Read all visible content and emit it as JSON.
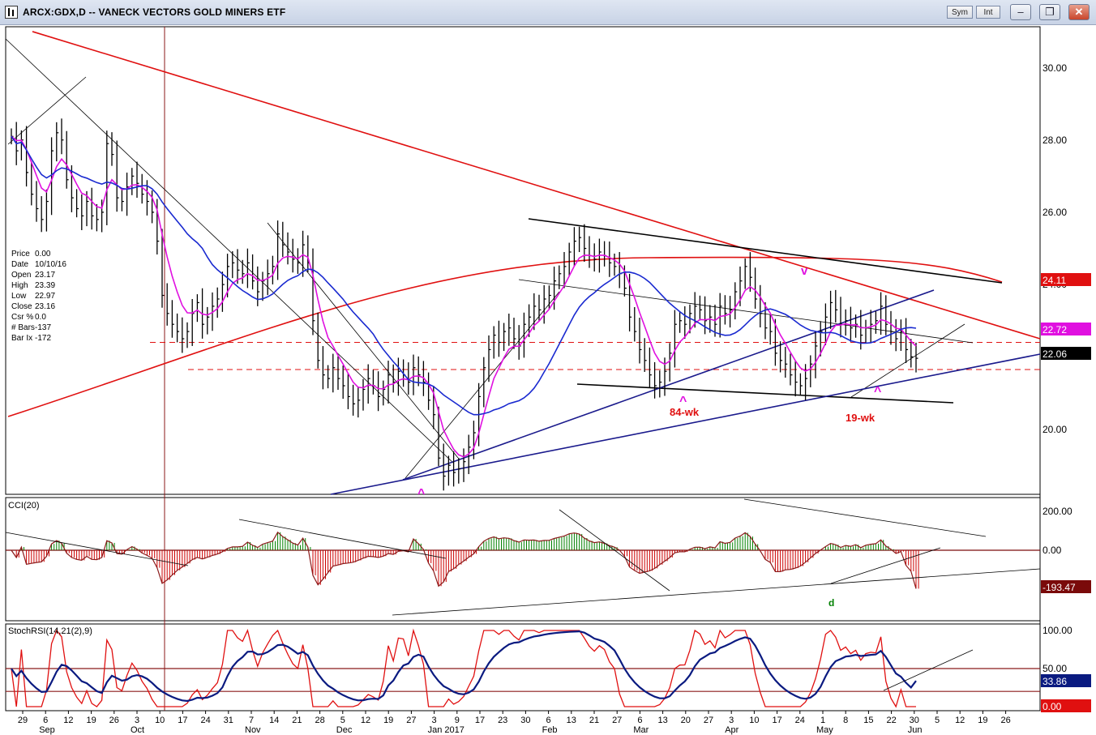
{
  "window": {
    "title": "ARCX:GDX,D -- VANECK VECTORS GOLD MINERS ETF",
    "sym_label": "Sym",
    "int_label": "Int",
    "minimize_glyph": "–",
    "restore_glyph": "❐",
    "close_glyph": "✕"
  },
  "info_box": {
    "rows": [
      {
        "label": "Price",
        "value": "0.00"
      },
      {
        "label": "Date",
        "value": "10/10/16"
      },
      {
        "label": "Open",
        "value": "23.17"
      },
      {
        "label": "High",
        "value": "23.39"
      },
      {
        "label": "Low",
        "value": "22.97"
      },
      {
        "label": "Close",
        "value": "23.16"
      },
      {
        "label": "Csr %",
        "value": "0.0"
      },
      {
        "label": "# Bars",
        "value": "-137"
      },
      {
        "label": "Bar Ix",
        "value": "-172"
      }
    ]
  },
  "colors": {
    "price_bars": "#000000",
    "ma_magenta": "#e010e0",
    "ma_blue": "#1a2ad0",
    "red_line": "#e01010",
    "trend_navy": "#1a1a8c",
    "cci_positive": "#008000",
    "cci_negative": "#cc0000",
    "stoch_fast": "#e01010",
    "stoch_slow": "#0a1a80"
  },
  "chart_data": [
    {
      "type": "bar",
      "title": "",
      "ylim": [
        18.2,
        31.2
      ],
      "yticks": [
        "20.00",
        "22.00",
        "24.00",
        "26.00",
        "28.00",
        "30.00"
      ],
      "price_labels": [
        {
          "text": "24.11",
          "value": 24.11,
          "bg": "#e01010",
          "fg": "#ffffff"
        },
        {
          "text": "22.72",
          "value": 22.72,
          "bg": "#e010e0",
          "fg": "#ffffff"
        },
        {
          "text": "22.06",
          "value": 22.06,
          "bg": "#000000",
          "fg": "#ffffff"
        }
      ],
      "x_tick_labels": [
        "29",
        "6",
        "12",
        "19",
        "26",
        "3",
        "10",
        "17",
        "24",
        "31",
        "7",
        "14",
        "21",
        "28",
        "5",
        "12",
        "19",
        "27",
        "3",
        "9",
        "17",
        "23",
        "30",
        "6",
        "13",
        "21",
        "27",
        "6",
        "13",
        "20",
        "27",
        "3",
        "10",
        "17",
        "24",
        "1",
        "8",
        "15",
        "22",
        "30",
        "5",
        "12",
        "19",
        "26"
      ],
      "month_labels": [
        "Sep",
        "Oct",
        "Nov",
        "Dec",
        "Jan 2017",
        "Feb",
        "Mar",
        "Apr",
        "May",
        "Jun"
      ],
      "closes": [
        28.2,
        27.8,
        28.1,
        27.2,
        26.6,
        26.2,
        25.9,
        26.4,
        27.8,
        28.3,
        28.1,
        27.0,
        26.5,
        26.2,
        26.0,
        26.4,
        26.0,
        25.9,
        26.1,
        28.0,
        27.7,
        26.5,
        26.4,
        26.8,
        27.1,
        26.9,
        26.6,
        26.4,
        26.1,
        25.3,
        23.8,
        23.3,
        23.0,
        22.8,
        22.6,
        22.8,
        23.3,
        23.6,
        23.0,
        23.2,
        23.5,
        23.7,
        24.1,
        24.6,
        24.7,
        24.5,
        24.4,
        24.7,
        24.2,
        23.9,
        24.2,
        24.4,
        24.6,
        25.5,
        25.2,
        25.0,
        24.8,
        24.7,
        25.2,
        24.7,
        23.1,
        22.0,
        21.6,
        21.5,
        21.8,
        21.5,
        21.3,
        21.0,
        20.8,
        20.9,
        21.2,
        21.5,
        21.3,
        21.0,
        21.2,
        21.6,
        21.4,
        21.7,
        21.6,
        21.4,
        21.8,
        21.6,
        21.4,
        20.9,
        20.5,
        19.3,
        18.8,
        19.1,
        18.9,
        19.0,
        19.2,
        19.6,
        20.0,
        21.0,
        21.8,
        22.3,
        22.7,
        22.5,
        22.8,
        22.9,
        22.6,
        22.4,
        23.0,
        23.2,
        23.5,
        23.4,
        23.7,
        23.8,
        24.2,
        24.4,
        24.6,
        25.0,
        25.3,
        25.4,
        25.1,
        24.9,
        24.8,
        25.0,
        24.9,
        24.7,
        24.6,
        24.4,
        24.0,
        23.2,
        22.8,
        22.3,
        22.0,
        21.6,
        21.3,
        21.4,
        21.7,
        22.2,
        23.0,
        23.1,
        23.0,
        23.3,
        23.5,
        23.4,
        23.1,
        23.2,
        23.0,
        23.5,
        23.3,
        23.4,
        23.9,
        24.2,
        24.6,
        24.3,
        23.7,
        23.3,
        22.9,
        22.8,
        22.2,
        22.0,
        21.9,
        21.6,
        21.4,
        21.3,
        21.5,
        21.9,
        22.4,
        22.8,
        23.2,
        23.6,
        23.4,
        23.0,
        23.1,
        22.9,
        23.0,
        22.7,
        22.9,
        23.0,
        23.1,
        23.5,
        23.0,
        22.8,
        22.6,
        22.8,
        22.3,
        22.1,
        22.06
      ],
      "series": [
        {
          "name": "",
          "kind": "ma_magenta"
        },
        {
          "name": "",
          "kind": "ma_blue"
        }
      ],
      "annotations": [
        {
          "text": "84-wk",
          "color": "#e01010"
        },
        {
          "text": "19-wk",
          "color": "#e01010"
        },
        {
          "text": "^",
          "color": "#e010e0"
        },
        {
          "text": "^",
          "color": "#e010e0"
        },
        {
          "text": "^",
          "color": "#e010e0"
        },
        {
          "text": "v",
          "color": "#e010e0"
        }
      ]
    },
    {
      "type": "bar",
      "title": "CCI(20)",
      "ylim": [
        -260,
        260
      ],
      "yticks": [
        "200.00",
        "0.00"
      ],
      "value_label": {
        "text": "-193.47",
        "value": -193.47
      },
      "annotation": {
        "text": "d",
        "color": "#008000"
      }
    },
    {
      "type": "line",
      "title": "StochRSI(14,21(2),9)",
      "ylim": [
        -5,
        105
      ],
      "yticks": [
        "100.00",
        "50.00"
      ],
      "value_labels": [
        {
          "text": "33.86",
          "value": 33.86,
          "bg": "#0a1a80"
        },
        {
          "text": "0.00",
          "value": 0.0,
          "bg": "#e01010"
        }
      ],
      "levels": [
        50,
        20
      ]
    }
  ]
}
